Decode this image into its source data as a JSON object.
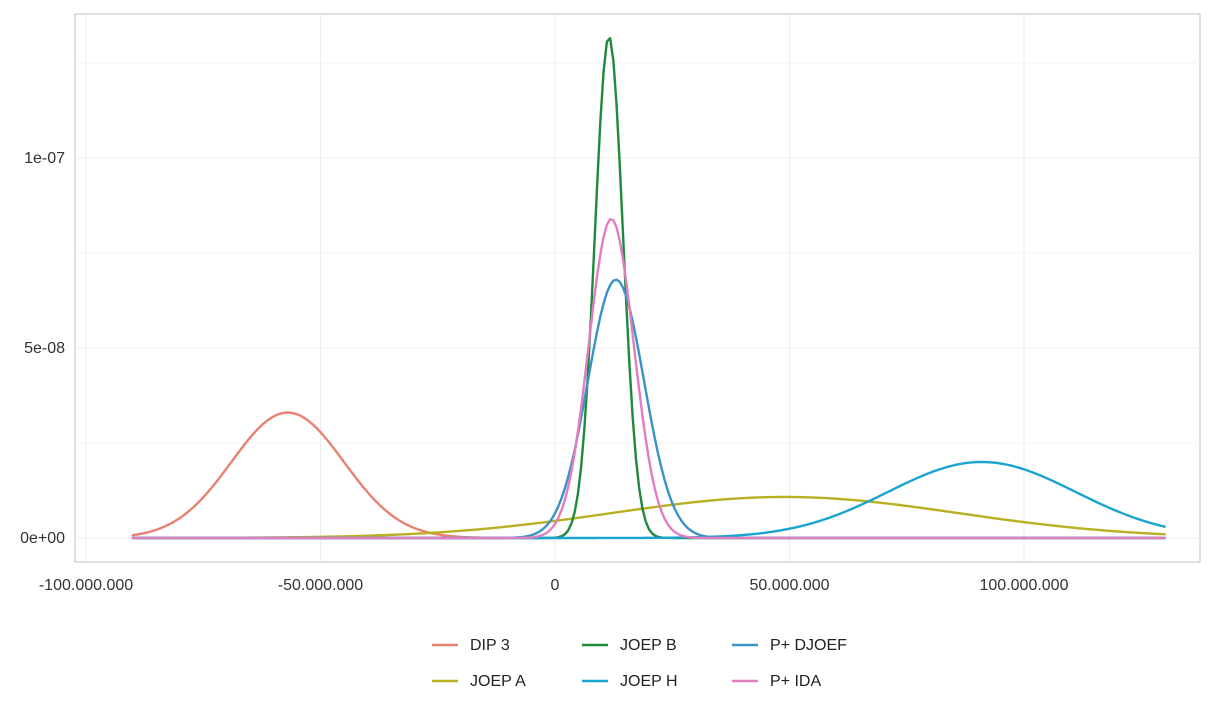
{
  "chart_data": {
    "type": "line",
    "title": "",
    "xlabel": "",
    "ylabel": "",
    "xlim": [
      -100000000,
      130000000
    ],
    "ylim": [
      0,
      1.35e-07
    ],
    "x_ticks": [
      {
        "value": -100000000,
        "label": "-100.000.000"
      },
      {
        "value": -50000000,
        "label": "-50.000.000"
      },
      {
        "value": 0,
        "label": "0"
      },
      {
        "value": 50000000,
        "label": "50.000.000"
      },
      {
        "value": 100000000,
        "label": "100.000.000"
      }
    ],
    "y_ticks": [
      {
        "value": 0,
        "label": "0e+00"
      },
      {
        "value": 5e-08,
        "label": "5e-08"
      },
      {
        "value": 1e-07,
        "label": "1e-07"
      }
    ],
    "grid": true,
    "legend_position": "bottom",
    "series": [
      {
        "name": "DIP 3",
        "color": "#E8826F",
        "mean": -57000000,
        "sd": 12000000,
        "peak": 3.3e-08,
        "x_range": [
          -90000000,
          -10000000
        ]
      },
      {
        "name": "JOEP A",
        "color": "#B8B020",
        "mean": 49000000,
        "sd": 37000000,
        "peak": 1.08e-08,
        "x_range": [
          -90000000,
          130000000
        ]
      },
      {
        "name": "JOEP B",
        "color": "#1F8A3C",
        "mean": 11500000,
        "sd": 3000000,
        "peak": 1.32e-07,
        "x_range": [
          -90000000,
          130000000
        ]
      },
      {
        "name": "JOEP H",
        "color": "#1AA5D0",
        "mean": 91000000,
        "sd": 20000000,
        "peak": 2e-08,
        "x_range": [
          -90000000,
          130000000
        ]
      },
      {
        "name": "P+ DJOEF",
        "color": "#3A93C7",
        "mean": 13000000,
        "sd": 6000000,
        "peak": 6.8e-08,
        "x_range": [
          -90000000,
          130000000
        ]
      },
      {
        "name": "P+ IDA",
        "color": "#E07EC0",
        "mean": 12000000,
        "sd": 4800000,
        "peak": 8.4e-08,
        "x_range": [
          -90000000,
          130000000
        ]
      }
    ],
    "legend_rows": [
      [
        "DIP 3",
        "JOEP B",
        "P+ DJOEF"
      ],
      [
        "JOEP A",
        "JOEP H",
        "P+ IDA"
      ]
    ]
  }
}
